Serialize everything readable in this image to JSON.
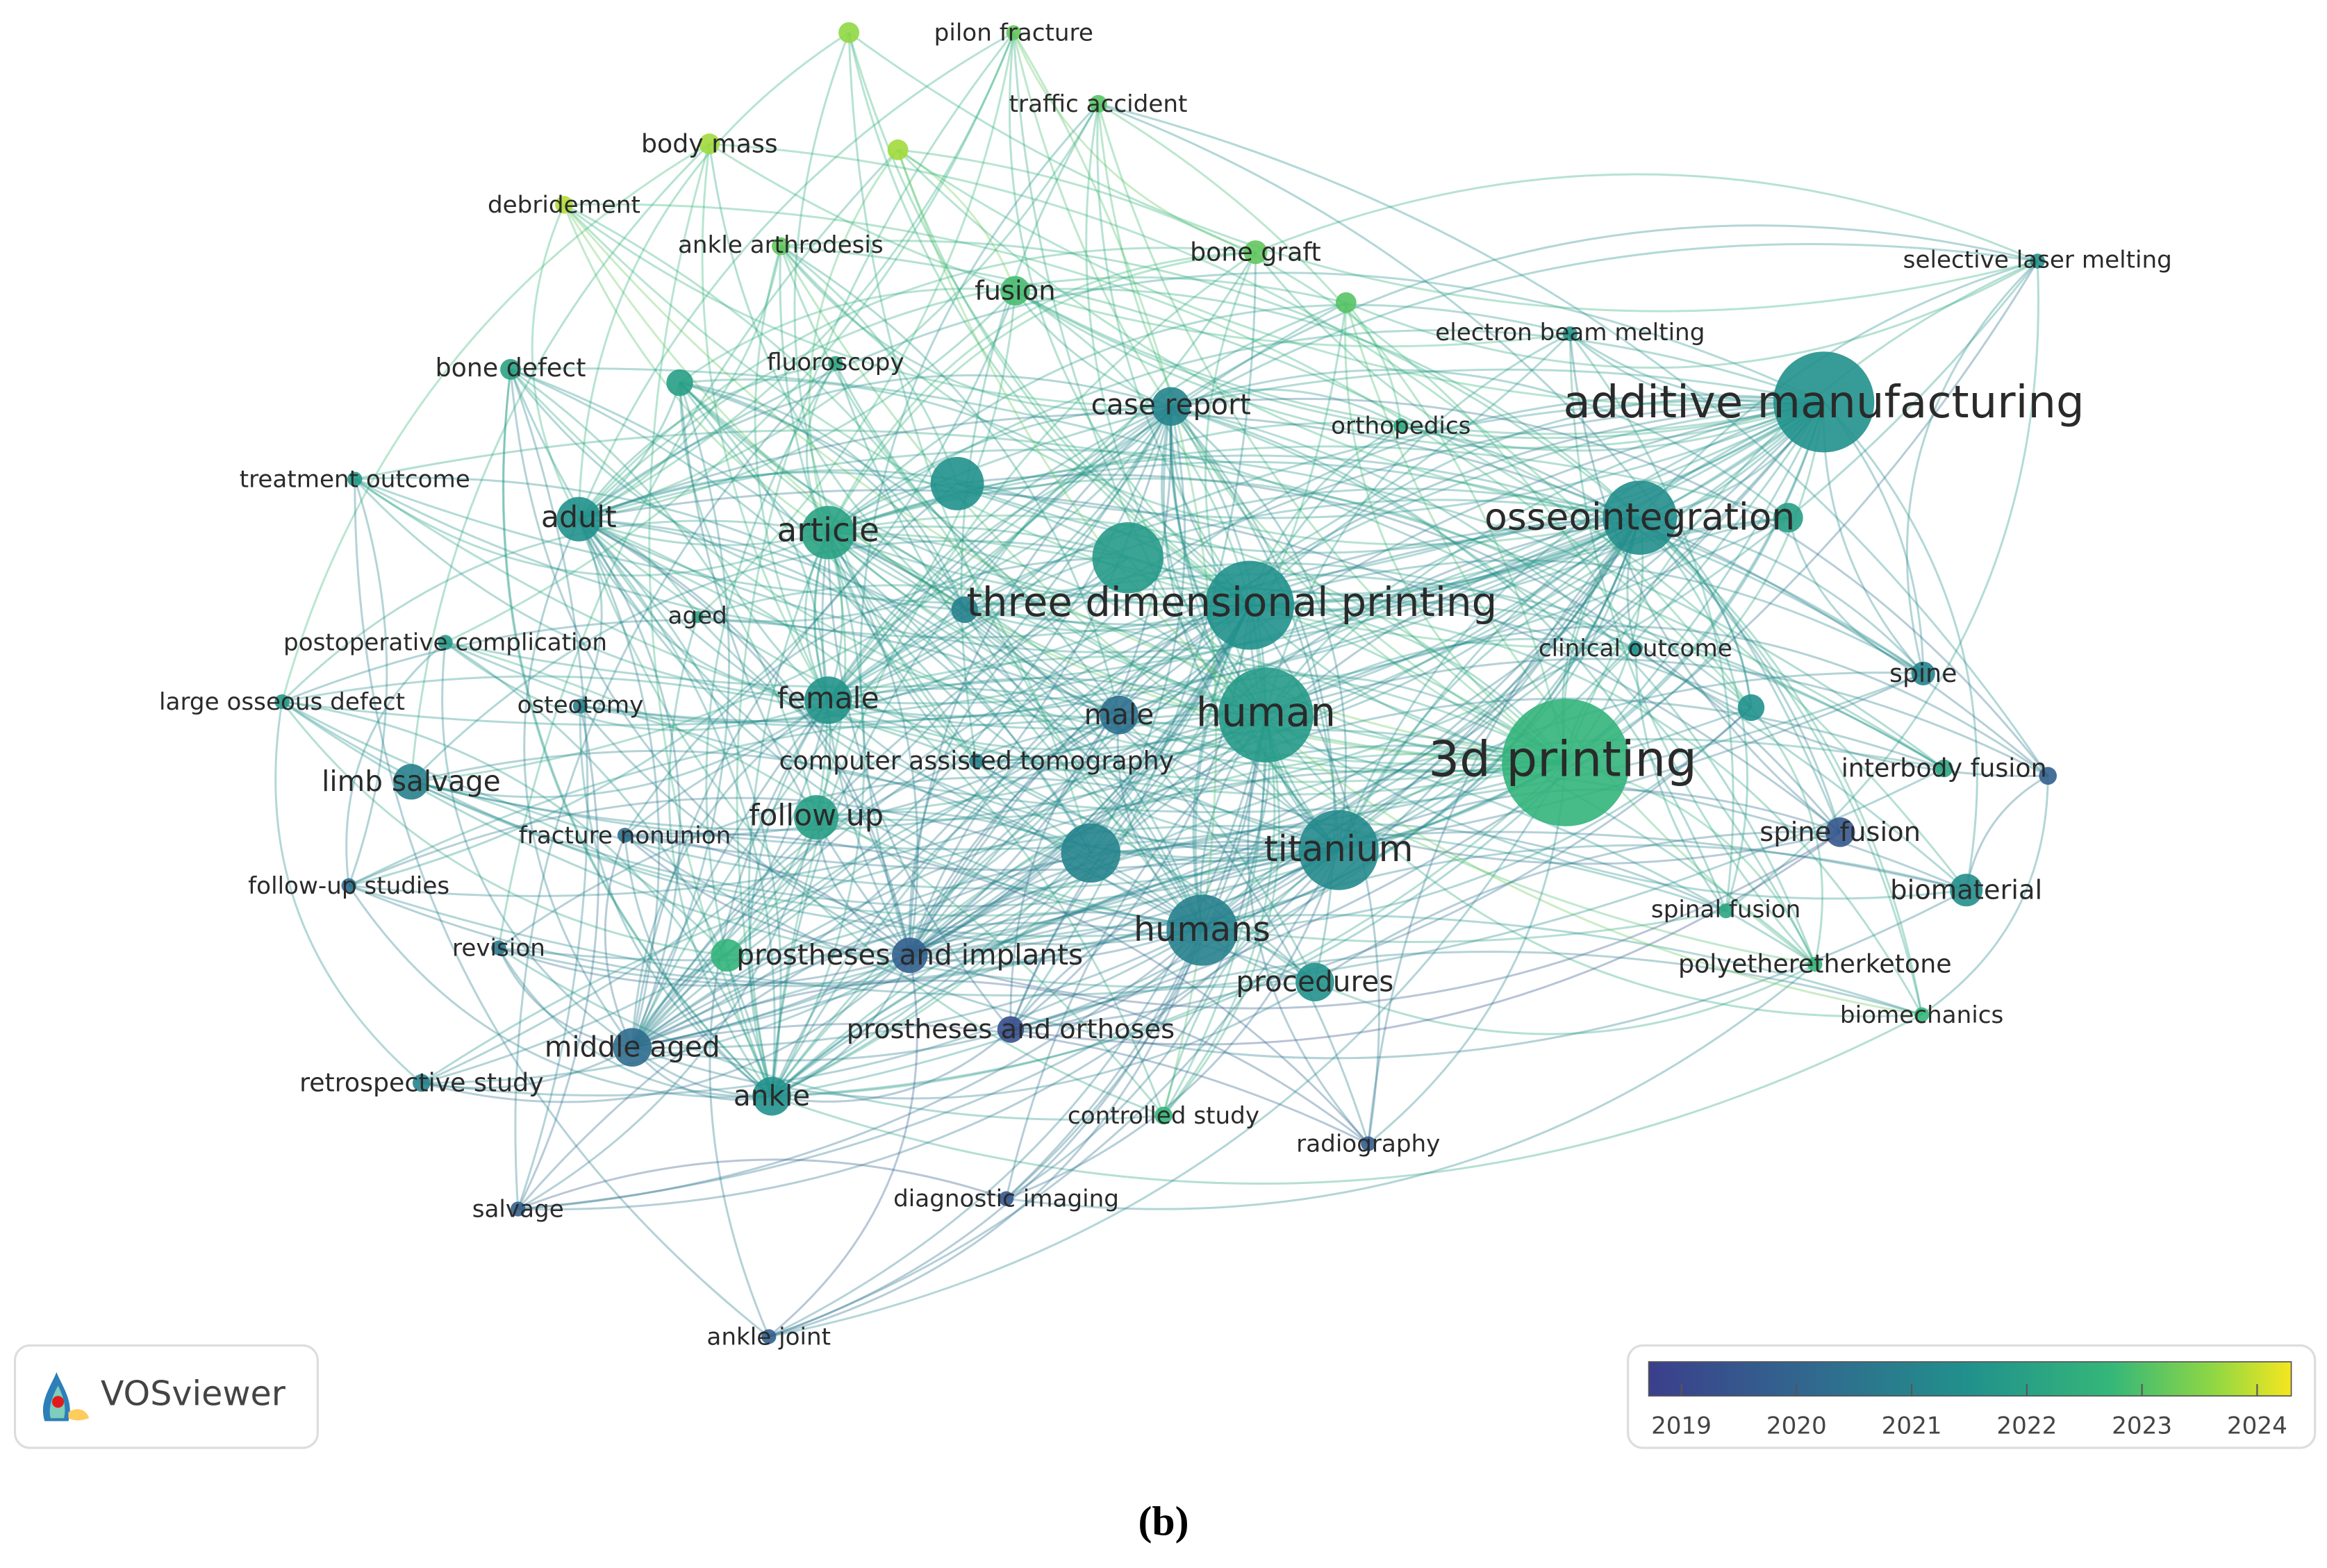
{
  "nodes": [
    {
      "label": "pilon fracture"
    },
    {
      "label": "traffic accident"
    },
    {
      "label": "body mass"
    },
    {
      "label": "debridement"
    },
    {
      "label": "ankle arthrodesis"
    },
    {
      "label": "bone graft"
    },
    {
      "label": "fusion"
    },
    {
      "label": "selective laser melting"
    },
    {
      "label": "electron beam melting"
    },
    {
      "label": "bone defect"
    },
    {
      "label": "fluoroscopy"
    },
    {
      "label": "case report"
    },
    {
      "label": "orthopedics"
    },
    {
      "label": "additive manufacturing"
    },
    {
      "label": "treatment outcome"
    },
    {
      "label": "adult"
    },
    {
      "label": "article"
    },
    {
      "label": "osseointegration"
    },
    {
      "label": "three dimensional printing"
    },
    {
      "label": "aged"
    },
    {
      "label": "postoperative complication"
    },
    {
      "label": "clinical outcome"
    },
    {
      "label": "spine"
    },
    {
      "label": "large osseous defect"
    },
    {
      "label": "osteotomy"
    },
    {
      "label": "female"
    },
    {
      "label": "male"
    },
    {
      "label": "human"
    },
    {
      "label": "3d printing"
    },
    {
      "label": "computer assisted tomography"
    },
    {
      "label": "interbody fusion"
    },
    {
      "label": "limb salvage"
    },
    {
      "label": "follow up"
    },
    {
      "label": "fracture nonunion"
    },
    {
      "label": "spine fusion"
    },
    {
      "label": "titanium"
    },
    {
      "label": "follow-up studies"
    },
    {
      "label": "biomaterial"
    },
    {
      "label": "revision"
    },
    {
      "label": "spinal fusion"
    },
    {
      "label": "prostheses and implants"
    },
    {
      "label": "humans"
    },
    {
      "label": "polyetheretherketone"
    },
    {
      "label": "procedures"
    },
    {
      "label": "middle aged"
    },
    {
      "label": "prostheses and orthoses"
    },
    {
      "label": "biomechanics"
    },
    {
      "label": "retrospective study"
    },
    {
      "label": "ankle"
    },
    {
      "label": "controlled study"
    },
    {
      "label": "radiography"
    },
    {
      "label": "salvage"
    },
    {
      "label": "diagnostic imaging"
    },
    {
      "label": "ankle joint"
    }
  ],
  "logo": {
    "text": "VOSviewer"
  },
  "colorbar": {
    "ticks": [
      2019,
      2020,
      2021,
      2022,
      2023,
      2024
    ]
  },
  "caption": "(b)"
}
